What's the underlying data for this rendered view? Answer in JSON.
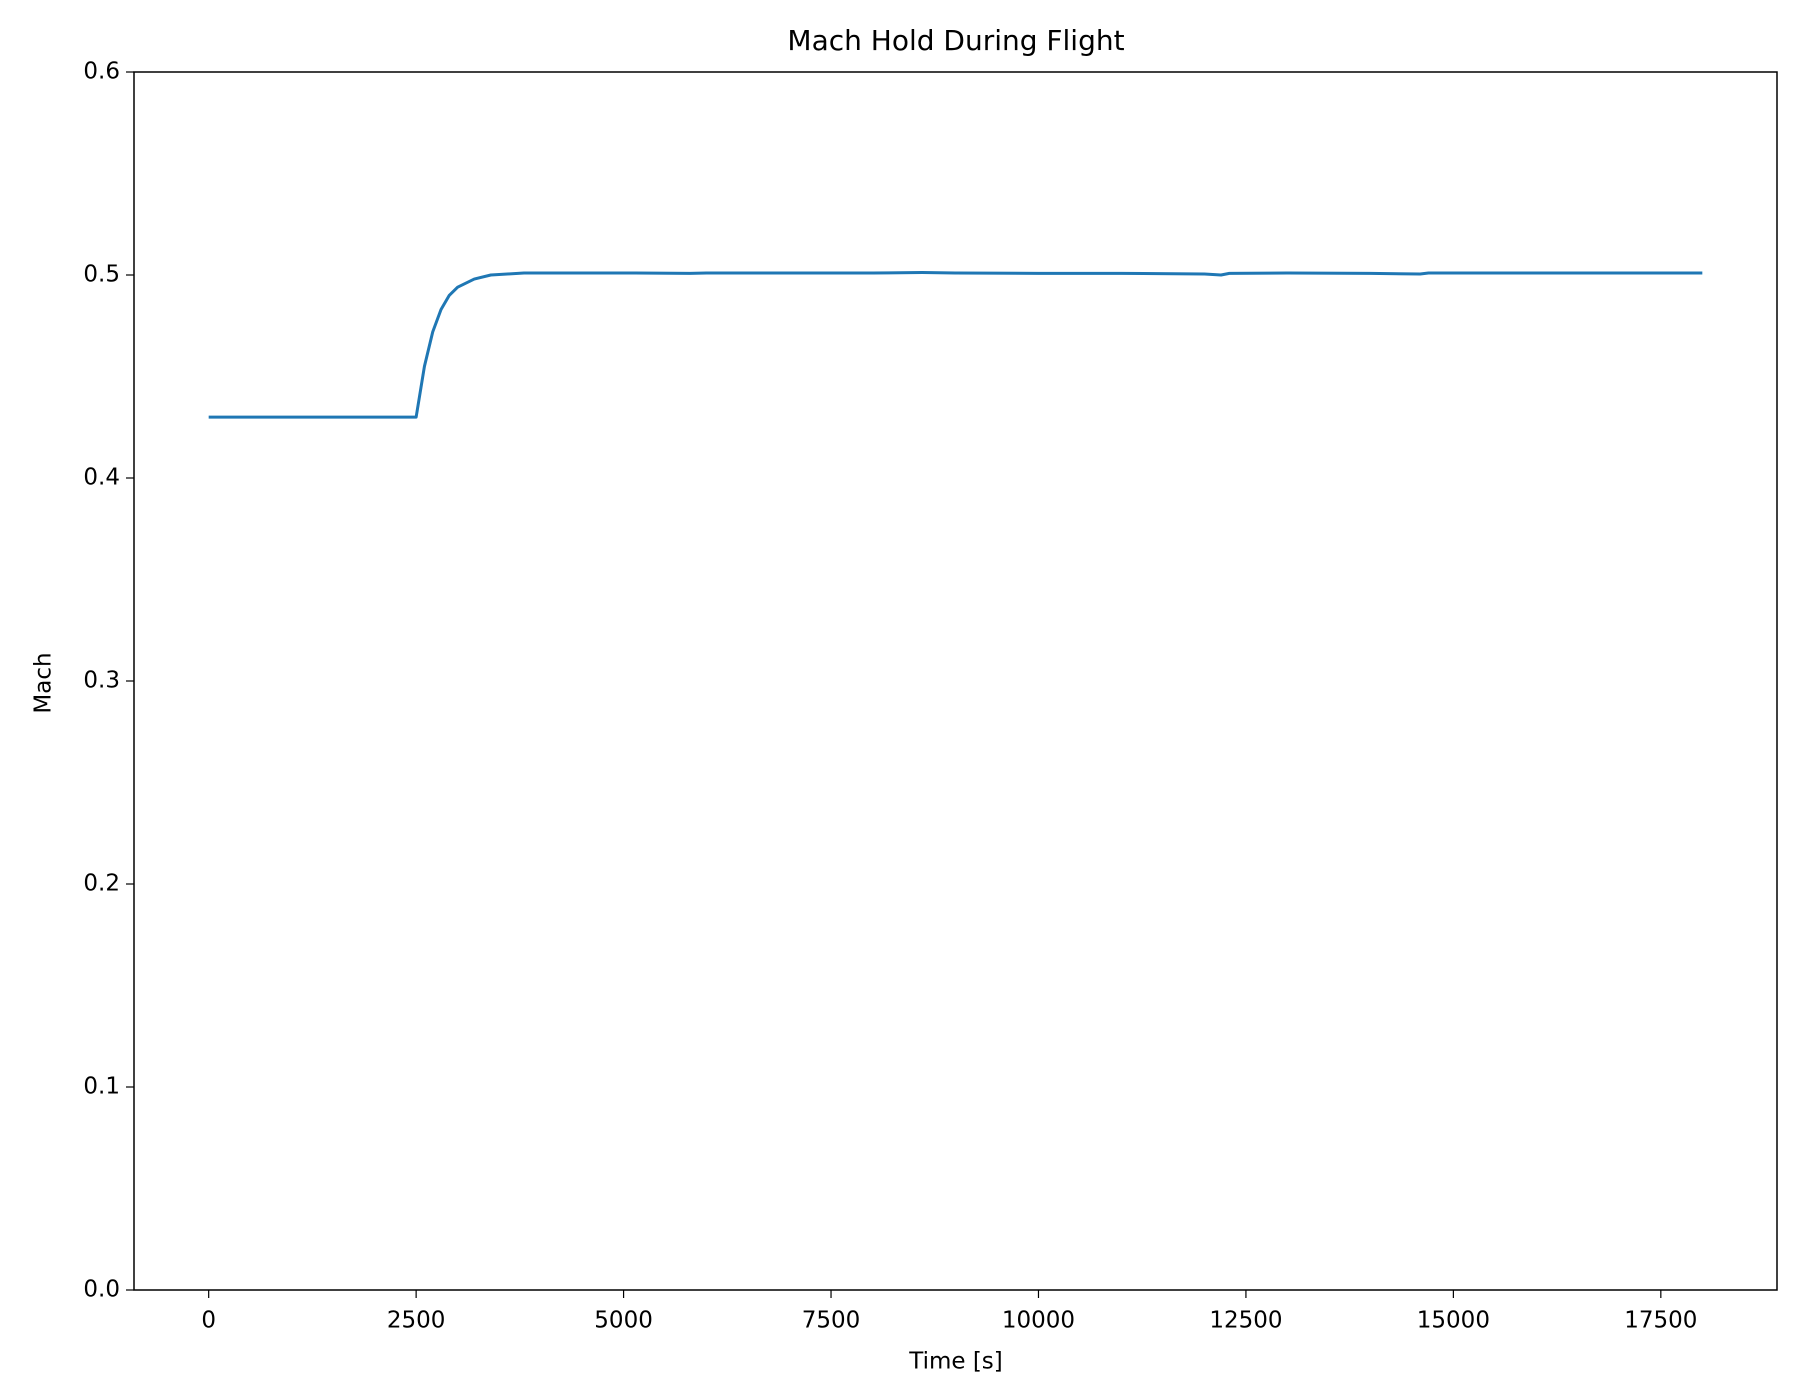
{
  "chart_data": {
    "type": "line",
    "title": "Mach Hold During Flight",
    "x_label": "Time [s]",
    "y_label": "Mach",
    "x": [
      0,
      500,
      1000,
      1500,
      2000,
      2500,
      2600,
      2700,
      2800,
      2900,
      3000,
      3200,
      3400,
      3600,
      3800,
      4000,
      5000,
      5800,
      6000,
      7000,
      8000,
      8600,
      9000,
      10000,
      11000,
      12000,
      12200,
      12300,
      13000,
      14000,
      14600,
      14700,
      15000,
      16000,
      17000,
      18000
    ],
    "series": [
      {
        "name": "Mach",
        "color": "#1f77b4",
        "values": [
          0.43,
          0.43,
          0.43,
          0.43,
          0.43,
          0.43,
          0.455,
          0.472,
          0.483,
          0.49,
          0.494,
          0.498,
          0.5,
          0.5005,
          0.501,
          0.501,
          0.501,
          0.5008,
          0.501,
          0.501,
          0.501,
          0.5012,
          0.501,
          0.5008,
          0.5008,
          0.5005,
          0.5,
          0.5008,
          0.501,
          0.5008,
          0.5005,
          0.501,
          0.501,
          0.501,
          0.501,
          0.501
        ]
      }
    ],
    "xlim": [
      -900,
      18900
    ],
    "xticks": [
      0,
      2500,
      5000,
      7500,
      10000,
      12500,
      15000,
      17500
    ],
    "ylim": [
      0,
      0.6
    ],
    "yticks": [
      {
        "value": 0,
        "label": "0.0"
      },
      0.1,
      0.2,
      0.3,
      0.4,
      0.5,
      0.6
    ],
    "grid": false
  }
}
